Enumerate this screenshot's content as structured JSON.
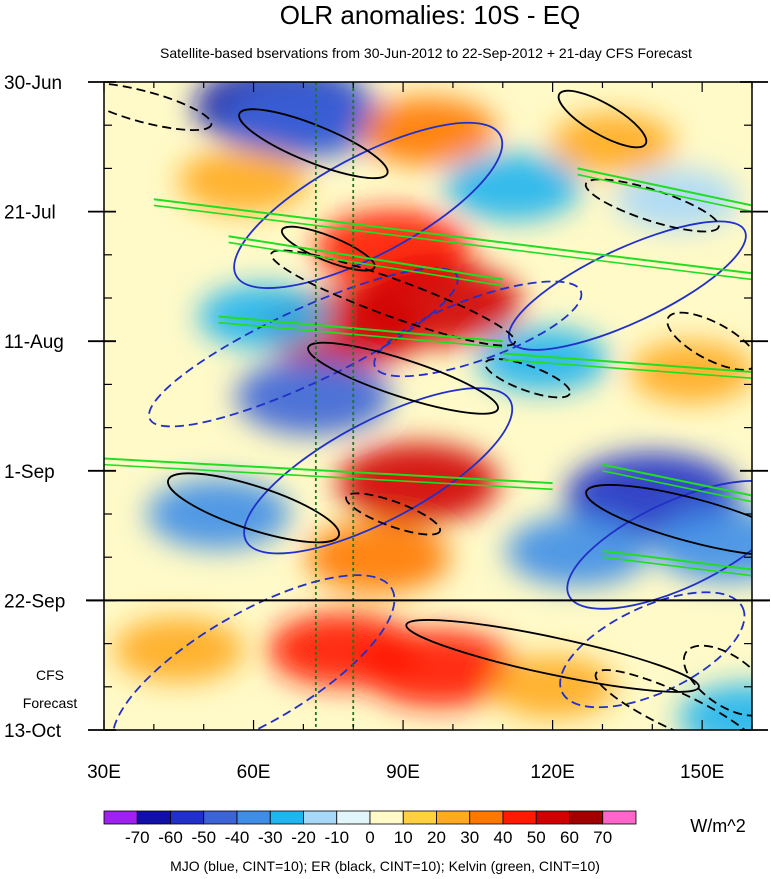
{
  "chart_data": {
    "type": "heatmap",
    "title": "OLR anomalies: 10S - EQ",
    "subtitle": "Satellite-based bservations from 30-Jun-2012 to 22-Sep-2012 + 21-day CFS Forecast",
    "xlabel": "",
    "ylabel": "",
    "xlim": [
      30,
      160
    ],
    "ylim_days": [
      0,
      105
    ],
    "x_ticks": [
      {
        "value": 30,
        "label": "30E"
      },
      {
        "value": 60,
        "label": "60E"
      },
      {
        "value": 90,
        "label": "90E"
      },
      {
        "value": 120,
        "label": "120E"
      },
      {
        "value": 150,
        "label": "150E"
      }
    ],
    "y_ticks": [
      {
        "day": 0,
        "label": "30-Jun"
      },
      {
        "day": 21,
        "label": "21-Jul"
      },
      {
        "day": 42,
        "label": "11-Aug"
      },
      {
        "day": 63,
        "label": "1-Sep"
      },
      {
        "day": 84,
        "label": "22-Sep"
      },
      {
        "day": 105,
        "label": "13-Oct"
      }
    ],
    "forecast_start_day": 84,
    "forecast_label": [
      "CFS",
      "Forecast"
    ],
    "reference_longitudes": [
      72.5,
      80
    ],
    "colorbar": {
      "levels": [
        -70,
        -60,
        -50,
        -40,
        -30,
        -20,
        -10,
        0,
        10,
        20,
        30,
        40,
        50,
        60,
        70
      ],
      "labels": [
        "-70",
        "-60",
        "-50",
        "-40",
        "-30",
        "-20",
        "-10",
        "0",
        "10",
        "20",
        "30",
        "40",
        "50",
        "60",
        "70"
      ],
      "colors": [
        "#a020f0",
        "#1010a8",
        "#2030c8",
        "#3c64d8",
        "#3e8ee8",
        "#20b4f0",
        "#a8d8f8",
        "#e0f6fa",
        "#fffac8",
        "#ffd040",
        "#ffaa20",
        "#ff7800",
        "#ff1a00",
        "#d00000",
        "#a00000",
        "#ff66cc"
      ],
      "unit": "W/m^2"
    },
    "anomaly_regions": [
      {
        "lon": 66,
        "day": 4,
        "value": -62
      },
      {
        "lon": 70,
        "day": 6,
        "value": -50
      },
      {
        "lon": 95,
        "day": 8,
        "value": 30
      },
      {
        "lon": 132,
        "day": 10,
        "value": 20
      },
      {
        "lon": 58,
        "day": 16,
        "value": 25
      },
      {
        "lon": 112,
        "day": 17,
        "value": -30
      },
      {
        "lon": 145,
        "day": 19,
        "value": -20
      },
      {
        "lon": 88,
        "day": 27,
        "value": 45
      },
      {
        "lon": 97,
        "day": 36,
        "value": 55
      },
      {
        "lon": 78,
        "day": 40,
        "value": 50
      },
      {
        "lon": 62,
        "day": 38,
        "value": -25
      },
      {
        "lon": 72,
        "day": 51,
        "value": -45
      },
      {
        "lon": 118,
        "day": 45,
        "value": -25
      },
      {
        "lon": 148,
        "day": 47,
        "value": 20
      },
      {
        "lon": 93,
        "day": 65,
        "value": 50
      },
      {
        "lon": 140,
        "day": 67,
        "value": -60
      },
      {
        "lon": 53,
        "day": 70,
        "value": -35
      },
      {
        "lon": 85,
        "day": 77,
        "value": 35
      },
      {
        "lon": 125,
        "day": 76,
        "value": -35
      },
      {
        "lon": 155,
        "day": 75,
        "value": -40
      },
      {
        "lon": 45,
        "day": 92,
        "value": 25
      },
      {
        "lon": 78,
        "day": 92,
        "value": 40
      },
      {
        "lon": 97,
        "day": 95,
        "value": 45
      },
      {
        "lon": 120,
        "day": 98,
        "value": 20
      },
      {
        "lon": 159,
        "day": 103,
        "value": -30
      }
    ],
    "contour_series": [
      {
        "name": "MJO",
        "color": "#2030c8",
        "cint": 10
      },
      {
        "name": "ER",
        "color": "#000000",
        "cint": 10
      },
      {
        "name": "Kelvin",
        "color": "#22dd22",
        "cint": 10
      }
    ],
    "contours": [
      {
        "series": "MJO",
        "sign": "positive",
        "lon": 83,
        "day": 20,
        "lon_radius": 30,
        "day_radius": 8,
        "tilt": -28
      },
      {
        "series": "MJO",
        "sign": "positive",
        "lon": 85,
        "day": 63,
        "lon_radius": 30,
        "day_radius": 8,
        "tilt": -28
      },
      {
        "series": "MJO",
        "sign": "positive",
        "lon": 135,
        "day": 33,
        "lon_radius": 26,
        "day_radius": 6,
        "tilt": -25
      },
      {
        "series": "MJO",
        "sign": "positive",
        "lon": 145,
        "day": 75,
        "lon_radius": 24,
        "day_radius": 7,
        "tilt": -25
      },
      {
        "series": "MJO",
        "sign": "negative",
        "lon": 70,
        "day": 43,
        "lon_radius": 34,
        "day_radius": 6,
        "tilt": -25
      },
      {
        "series": "MJO",
        "sign": "negative",
        "lon": 105,
        "day": 40,
        "lon_radius": 22,
        "day_radius": 5,
        "tilt": -20
      },
      {
        "series": "MJO",
        "sign": "negative",
        "lon": 60,
        "day": 95,
        "lon_radius": 32,
        "day_radius": 9,
        "tilt": -30
      },
      {
        "series": "MJO",
        "sign": "negative",
        "lon": 140,
        "day": 92,
        "lon_radius": 20,
        "day_radius": 7,
        "tilt": -25
      },
      {
        "series": "ER",
        "sign": "positive",
        "lon": 72,
        "day": 10,
        "lon_radius": 16,
        "day_radius": 3,
        "tilt": 22
      },
      {
        "series": "ER",
        "sign": "positive",
        "lon": 130,
        "day": 6,
        "lon_radius": 10,
        "day_radius": 2.5,
        "tilt": 30
      },
      {
        "series": "ER",
        "sign": "positive",
        "lon": 75,
        "day": 27,
        "lon_radius": 10,
        "day_radius": 2,
        "tilt": 22
      },
      {
        "series": "ER",
        "sign": "positive",
        "lon": 90,
        "day": 48,
        "lon_radius": 20,
        "day_radius": 3,
        "tilt": 18
      },
      {
        "series": "ER",
        "sign": "positive",
        "lon": 60,
        "day": 69,
        "lon_radius": 18,
        "day_radius": 3.5,
        "tilt": 18
      },
      {
        "series": "ER",
        "sign": "positive",
        "lon": 120,
        "day": 93,
        "lon_radius": 30,
        "day_radius": 3,
        "tilt": 12
      },
      {
        "series": "ER",
        "sign": "positive",
        "lon": 148,
        "day": 71,
        "lon_radius": 22,
        "day_radius": 3.5,
        "tilt": 15
      },
      {
        "series": "ER",
        "sign": "negative",
        "lon": 38,
        "day": 4,
        "lon_radius": 14,
        "day_radius": 2.5,
        "tilt": 15
      },
      {
        "series": "ER",
        "sign": "negative",
        "lon": 88,
        "day": 35,
        "lon_radius": 26,
        "day_radius": 3,
        "tilt": 20
      },
      {
        "series": "ER",
        "sign": "negative",
        "lon": 115,
        "day": 48,
        "lon_radius": 9,
        "day_radius": 2,
        "tilt": 20
      },
      {
        "series": "ER",
        "sign": "negative",
        "lon": 88,
        "day": 70,
        "lon_radius": 10,
        "day_radius": 2,
        "tilt": 20
      },
      {
        "series": "ER",
        "sign": "negative",
        "lon": 140,
        "day": 20,
        "lon_radius": 14,
        "day_radius": 2.5,
        "tilt": 18
      },
      {
        "series": "ER",
        "sign": "negative",
        "lon": 152,
        "day": 42,
        "lon_radius": 10,
        "day_radius": 3,
        "tilt": 28
      },
      {
        "series": "ER",
        "sign": "negative",
        "lon": 145,
        "day": 102,
        "lon_radius": 18,
        "day_radius": 3,
        "tilt": 25
      },
      {
        "series": "ER",
        "sign": "negative",
        "lon": 155,
        "day": 97,
        "lon_radius": 10,
        "day_radius": 4,
        "tilt": 35
      }
    ],
    "kelvin_bands": [
      {
        "lon": [
          40,
          160
        ],
        "day": [
          19,
          31
        ]
      },
      {
        "lon": [
          55,
          110
        ],
        "day": [
          25,
          32
        ]
      },
      {
        "lon": [
          30,
          120
        ],
        "day": [
          61,
          65
        ]
      },
      {
        "lon": [
          53,
          110
        ],
        "day": [
          38,
          42
        ]
      },
      {
        "lon": [
          110,
          160
        ],
        "day": [
          44,
          47
        ]
      },
      {
        "lon": [
          125,
          160
        ],
        "day": [
          14,
          20
        ]
      },
      {
        "lon": [
          130,
          160
        ],
        "day": [
          62,
          67
        ]
      },
      {
        "lon": [
          130,
          160
        ],
        "day": [
          76,
          79
        ]
      }
    ],
    "legend_text": "MJO (blue, CINT=10); ER (black, CINT=10); Kelvin (green, CINT=10)"
  }
}
